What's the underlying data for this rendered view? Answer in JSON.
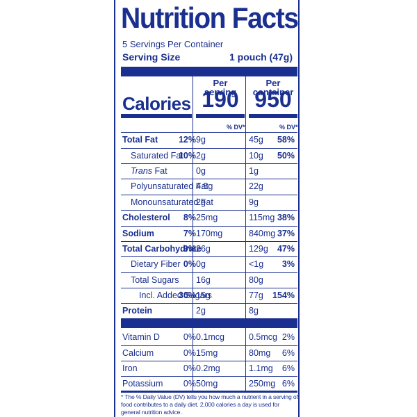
{
  "title": "Nutrition Facts",
  "servings_per_container": "5 Servings Per Container",
  "serving_size_label": "Serving Size",
  "serving_size_value": "1 pouch (47g)",
  "calories_label": "Calories",
  "per_serving_header": "Per serving",
  "per_container_header": "Per container",
  "calories_per_serving": "190",
  "calories_per_container": "950",
  "dv_header": "% DV*",
  "nutrients": [
    {
      "name": "Total Fat",
      "amount1": "9g",
      "pct1": "12%",
      "amount2": "45g",
      "pct2": "58%"
    },
    {
      "name": "Saturated Fat",
      "amount1": "2g",
      "pct1": "10%",
      "amount2": "10g",
      "pct2": "50%"
    },
    {
      "name_italic": "Trans",
      "name_rest": " Fat",
      "amount1": "0g",
      "pct1": "",
      "amount2": "1g",
      "pct2": ""
    },
    {
      "name": "Polyunsaturated Fat",
      "amount1": "4.5g",
      "pct1": "",
      "amount2": "22g",
      "pct2": ""
    },
    {
      "name": "Monounsaturated Fat",
      "amount1": "2g",
      "pct1": "",
      "amount2": "9g",
      "pct2": ""
    },
    {
      "name": "Cholesterol",
      "amount1": "25mg",
      "pct1": "8%",
      "amount2": "115mg",
      "pct2": "38%"
    },
    {
      "name": "Sodium",
      "amount1": "170mg",
      "pct1": "7%",
      "amount2": "840mg",
      "pct2": "37%"
    },
    {
      "name": "Total Carbohydrate",
      "amount1": "26g",
      "pct1": "9%",
      "amount2": "129g",
      "pct2": "47%"
    },
    {
      "name": "Dietary Fiber",
      "amount1": "0g",
      "pct1": "0%",
      "amount2": "<1g",
      "pct2": "3%"
    },
    {
      "name": "Total Sugars",
      "amount1": "16g",
      "pct1": "",
      "amount2": "80g",
      "pct2": ""
    },
    {
      "name": "Incl. Added Sugars",
      "amount1": "15g",
      "pct1": "30%",
      "amount2": "77g",
      "pct2": "154%"
    },
    {
      "name": "Protein",
      "amount1": "2g",
      "pct1": "",
      "amount2": "8g",
      "pct2": ""
    }
  ],
  "vitamins": [
    {
      "name": "Vitamin D",
      "amount1": "0.1mcg",
      "pct1": "0%",
      "amount2": "0.5mcg",
      "pct2": "2%"
    },
    {
      "name": "Calcium",
      "amount1": "15mg",
      "pct1": "0%",
      "amount2": "80mg",
      "pct2": "6%"
    },
    {
      "name": "Iron",
      "amount1": "0.2mg",
      "pct1": "0%",
      "amount2": "1.1mg",
      "pct2": "6%"
    },
    {
      "name": "Potassium",
      "amount1": "50mg",
      "pct1": "0%",
      "amount2": "250mg",
      "pct2": "6%"
    }
  ],
  "footnote": "* The % Daily Value (DV) tells you how much a nutrient in a serving of food contributes to a daily diet. 2,000 calories a day is used for general nutrition advice.",
  "colors": {
    "ink": "#1a2f8f",
    "background": "#ffffff"
  }
}
